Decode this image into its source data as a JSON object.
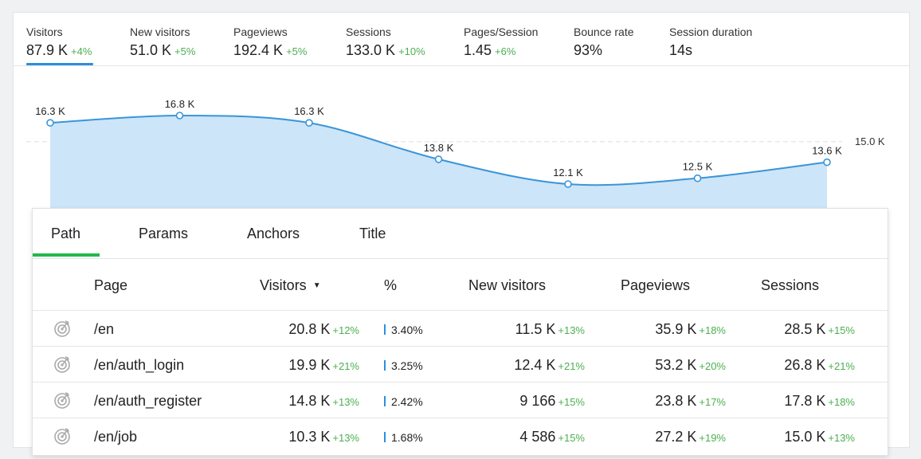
{
  "metrics": [
    {
      "label": "Visitors",
      "value": "87.9 K",
      "delta": "+4%"
    },
    {
      "label": "New visitors",
      "value": "51.0 K",
      "delta": "+5%"
    },
    {
      "label": "Pageviews",
      "value": "192.4 K",
      "delta": "+5%"
    },
    {
      "label": "Sessions",
      "value": "133.0 K",
      "delta": "+10%"
    },
    {
      "label": "Pages/Session",
      "value": "1.45",
      "delta": "+6%"
    },
    {
      "label": "Bounce rate",
      "value": "93%",
      "delta": ""
    },
    {
      "label": "Session duration",
      "value": "14s",
      "delta": ""
    }
  ],
  "chart_data": {
    "type": "area",
    "series": [
      {
        "name": "Visitors",
        "values": [
          16.3,
          16.8,
          16.3,
          13.8,
          12.1,
          12.5,
          13.6
        ]
      }
    ],
    "point_labels": [
      "16.3 K",
      "16.8 K",
      "16.3 K",
      "13.8 K",
      "12.1 K",
      "12.5 K",
      "13.6 K"
    ],
    "reference_line": {
      "value": 15.0,
      "label": "15.0 K"
    },
    "colors": {
      "line": "#3a95d9",
      "fill": "#cde5f8",
      "reference": "#dddddd"
    }
  },
  "tabs": [
    "Path",
    "Params",
    "Anchors",
    "Title"
  ],
  "columns": {
    "page": "Page",
    "visitors": "Visitors",
    "sort_indicator": "▼",
    "percent": "%",
    "new_visitors": "New visitors",
    "pageviews": "Pageviews",
    "sessions": "Sessions"
  },
  "rows": [
    {
      "page": "/en",
      "visitors": "20.8 K",
      "visitors_delta": "+12%",
      "percent": "3.40%",
      "new_visitors": "11.5 K",
      "new_visitors_delta": "+13%",
      "pageviews": "35.9 K",
      "pageviews_delta": "+18%",
      "sessions": "28.5 K",
      "sessions_delta": "+15%"
    },
    {
      "page": "/en/auth_login",
      "visitors": "19.9 K",
      "visitors_delta": "+21%",
      "percent": "3.25%",
      "new_visitors": "12.4 K",
      "new_visitors_delta": "+21%",
      "pageviews": "53.2 K",
      "pageviews_delta": "+20%",
      "sessions": "26.8 K",
      "sessions_delta": "+21%"
    },
    {
      "page": "/en/auth_register",
      "visitors": "14.8 K",
      "visitors_delta": "+13%",
      "percent": "2.42%",
      "new_visitors": "9 166",
      "new_visitors_delta": "+15%",
      "pageviews": "23.8 K",
      "pageviews_delta": "+17%",
      "sessions": "17.8 K",
      "sessions_delta": "+18%"
    },
    {
      "page": "/en/job",
      "visitors": "10.3 K",
      "visitors_delta": "+13%",
      "percent": "1.68%",
      "new_visitors": "4 586",
      "new_visitors_delta": "+15%",
      "pageviews": "27.2 K",
      "pageviews_delta": "+19%",
      "sessions": "15.0 K",
      "sessions_delta": "+13%"
    }
  ],
  "colors": {
    "accent": "#2e8ddd",
    "tab_active": "#22b84a",
    "positive": "#4caf50"
  }
}
